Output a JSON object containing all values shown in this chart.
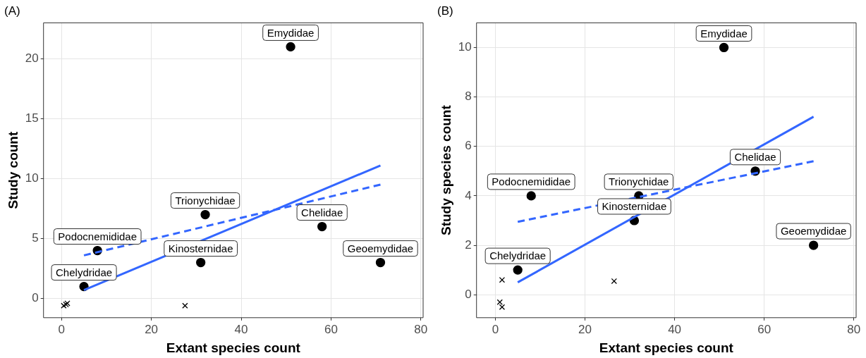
{
  "chart_data": [
    {
      "type": "scatter",
      "title": "(A)",
      "xlabel": "Extant species count",
      "ylabel": "Study count",
      "xlim": [
        -4,
        80.5
      ],
      "ylim": [
        -1.6,
        23
      ],
      "xticks": [
        0,
        20,
        40,
        60,
        80
      ],
      "yticks": [
        0,
        5,
        10,
        15,
        20
      ],
      "grid": true,
      "legend": false,
      "series": [
        {
          "type": "scatter",
          "marker": "circle",
          "color": "#000000",
          "x": [
            5,
            8,
            31,
            32,
            51,
            58,
            71
          ],
          "values": [
            1,
            4,
            3,
            7,
            21,
            6,
            3
          ]
        },
        {
          "type": "scatter",
          "marker": "cross",
          "color": "#000000",
          "x": [
            0.5,
            1,
            1.3,
            27.5
          ],
          "values": [
            -0.6,
            -0.5,
            -0.4,
            -0.6
          ]
        },
        {
          "type": "line",
          "marker": "none",
          "line_style": "solid",
          "color": "#3366ff",
          "x": [
            5,
            71
          ],
          "values": [
            0.7,
            11.1
          ]
        },
        {
          "type": "line",
          "marker": "none",
          "line_style": "dashed",
          "color": "#3366ff",
          "x": [
            5,
            71
          ],
          "values": [
            3.6,
            9.5
          ]
        }
      ],
      "annotations": [
        {
          "text": "Chelydridae",
          "x": 5,
          "y": 1
        },
        {
          "text": "Podocnemididae",
          "x": 8,
          "y": 4
        },
        {
          "text": "Kinosternidae",
          "x": 31,
          "y": 3
        },
        {
          "text": "Trionychidae",
          "x": 32,
          "y": 7
        },
        {
          "text": "Emydidae",
          "x": 51,
          "y": 21
        },
        {
          "text": "Chelidae",
          "x": 58,
          "y": 6
        },
        {
          "text": "Geoemydidae",
          "x": 71,
          "y": 3
        }
      ]
    },
    {
      "type": "scatter",
      "title": "(B)",
      "xlabel": "Extant species count",
      "ylabel": "Study species count",
      "xlim": [
        -4.2,
        80.5
      ],
      "ylim": [
        -0.93,
        11
      ],
      "xticks": [
        0,
        20,
        40,
        60,
        80
      ],
      "yticks": [
        0,
        2,
        4,
        6,
        8,
        10
      ],
      "grid": true,
      "legend": false,
      "series": [
        {
          "type": "scatter",
          "marker": "circle",
          "color": "#000000",
          "x": [
            5,
            8,
            31,
            32,
            51,
            58,
            71
          ],
          "values": [
            1,
            4,
            3,
            4,
            10,
            5,
            2
          ]
        },
        {
          "type": "scatter",
          "marker": "cross",
          "color": "#000000",
          "x": [
            1.5,
            1,
            1.5,
            26.5
          ],
          "values": [
            0.6,
            -0.3,
            -0.5,
            0.55
          ]
        },
        {
          "type": "line",
          "marker": "none",
          "line_style": "solid",
          "color": "#3366ff",
          "x": [
            5,
            71
          ],
          "values": [
            0.5,
            7.2
          ]
        },
        {
          "type": "line",
          "marker": "none",
          "line_style": "dashed",
          "color": "#3366ff",
          "x": [
            5,
            71
          ],
          "values": [
            2.95,
            5.4
          ]
        }
      ],
      "annotations": [
        {
          "text": "Chelydridae",
          "x": 5,
          "y": 1
        },
        {
          "text": "Podocnemididae",
          "x": 8,
          "y": 4
        },
        {
          "text": "Kinosternidae",
          "x": 31,
          "y": 3
        },
        {
          "text": "Trionychidae",
          "x": 32,
          "y": 4
        },
        {
          "text": "Emydidae",
          "x": 51,
          "y": 10
        },
        {
          "text": "Chelidae",
          "x": 58,
          "y": 5
        },
        {
          "text": "Geoemydidae",
          "x": 71,
          "y": 2
        }
      ]
    }
  ]
}
